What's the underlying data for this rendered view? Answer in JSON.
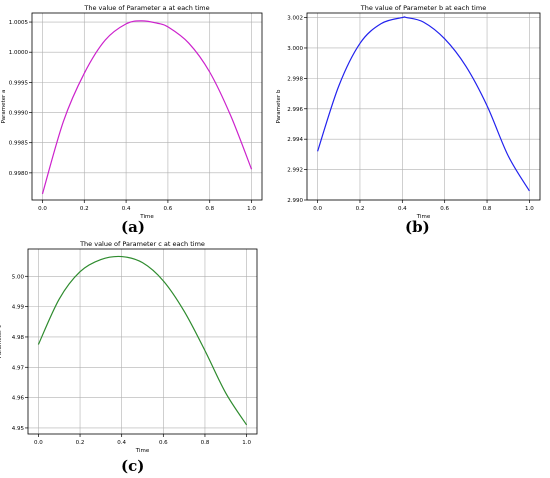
{
  "chart_data": [
    {
      "type": "line",
      "title": "The value of Parameter a at each time",
      "xlabel": "Time",
      "ylabel": "Parameter a",
      "panel_label": "(a)",
      "xlim": [
        -0.05,
        1.05
      ],
      "ylim": [
        0.99755,
        1.00065
      ],
      "xticks": [
        0.0,
        0.2,
        0.4,
        0.6,
        0.8,
        1.0
      ],
      "xtick_labels": [
        "0.0",
        "0.2",
        "0.4",
        "0.6",
        "0.8",
        "1.0"
      ],
      "yticks": [
        0.998,
        0.9985,
        0.999,
        0.9995,
        1.0,
        1.0005
      ],
      "ytick_labels": [
        "0.9980",
        "0.9985",
        "0.9990",
        "0.9995",
        "1.0000",
        "1.0005"
      ],
      "grid": true,
      "color": "#cc22cc",
      "series": [
        {
          "x": [
            0.0,
            0.1,
            0.2,
            0.3,
            0.4,
            0.475,
            0.55,
            0.6,
            0.7,
            0.8,
            0.9,
            1.0
          ],
          "y": [
            0.99765,
            0.99885,
            0.99965,
            1.0002,
            1.00047,
            1.00052,
            1.00048,
            1.00042,
            1.00015,
            0.99967,
            0.99895,
            0.99806
          ]
        }
      ]
    },
    {
      "type": "line",
      "title": "The value of Parameter b at each time",
      "xlabel": "Time",
      "ylabel": "Parameter b",
      "panel_label": "(b)",
      "xlim": [
        -0.05,
        1.05
      ],
      "ylim": [
        2.99,
        3.0023
      ],
      "xticks": [
        0.0,
        0.2,
        0.4,
        0.6,
        0.8,
        1.0
      ],
      "xtick_labels": [
        "0.0",
        "0.2",
        "0.4",
        "0.6",
        "0.8",
        "1.0"
      ],
      "yticks": [
        2.99,
        2.992,
        2.994,
        2.996,
        2.998,
        3.0,
        3.002
      ],
      "ytick_labels": [
        "2.990",
        "2.992",
        "2.994",
        "2.996",
        "2.998",
        "3.000",
        "3.002"
      ],
      "grid": true,
      "color": "#2222ee",
      "series": [
        {
          "x": [
            0.0,
            0.1,
            0.2,
            0.3,
            0.4,
            0.42,
            0.5,
            0.6,
            0.7,
            0.8,
            0.9,
            1.0
          ],
          "y": [
            2.9932,
            2.9975,
            3.0003,
            3.0016,
            3.002,
            3.002,
            3.0017,
            3.0006,
            2.9988,
            2.9962,
            2.9929,
            2.9906
          ]
        }
      ]
    },
    {
      "type": "line",
      "title": "The value of Parameter c at each time",
      "xlabel": "Time",
      "ylabel": "Parameter c",
      "panel_label": "(c)",
      "xlim": [
        -0.05,
        1.05
      ],
      "ylim": [
        4.948,
        5.009
      ],
      "xticks": [
        0.0,
        0.2,
        0.4,
        0.6,
        0.8,
        1.0
      ],
      "xtick_labels": [
        "0.0",
        "0.2",
        "0.4",
        "0.6",
        "0.8",
        "1.0"
      ],
      "yticks": [
        4.95,
        4.96,
        4.97,
        4.98,
        4.99,
        5.0
      ],
      "ytick_labels": [
        "4.95",
        "4.96",
        "4.97",
        "4.98",
        "4.99",
        "5.00"
      ],
      "grid": true,
      "color": "#2e8b2e",
      "series": [
        {
          "x": [
            0.0,
            0.1,
            0.2,
            0.3,
            0.4,
            0.5,
            0.6,
            0.7,
            0.8,
            0.9,
            1.0
          ],
          "y": [
            4.9775,
            4.9925,
            5.0015,
            5.0055,
            5.0065,
            5.0045,
            4.9985,
            4.9885,
            4.9755,
            4.9615,
            4.951
          ]
        }
      ]
    }
  ]
}
